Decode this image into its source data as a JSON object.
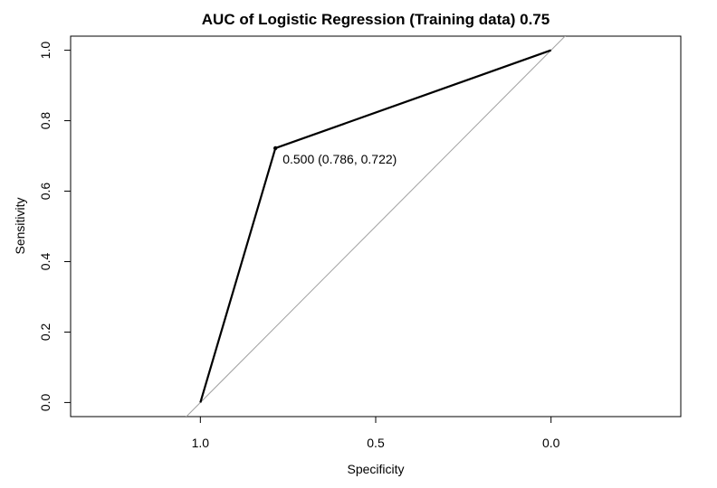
{
  "chart_data": {
    "type": "line",
    "title": "AUC of Logistic Regression (Training data) 0.75",
    "xlabel": "Specificity",
    "ylabel": "Sensitivity",
    "x_reversed": true,
    "xlim": [
      1.37,
      -0.37
    ],
    "ylim": [
      -0.04,
      1.04
    ],
    "x_ticks": [
      {
        "value": 1.0,
        "label": "1.0"
      },
      {
        "value": 0.5,
        "label": "0.5"
      },
      {
        "value": 0.0,
        "label": "0.0"
      }
    ],
    "y_ticks": [
      {
        "value": 0.0,
        "label": "0.0"
      },
      {
        "value": 0.2,
        "label": "0.2"
      },
      {
        "value": 0.4,
        "label": "0.4"
      },
      {
        "value": 0.6,
        "label": "0.6"
      },
      {
        "value": 0.8,
        "label": "0.8"
      },
      {
        "value": 1.0,
        "label": "1.0"
      }
    ],
    "series": [
      {
        "x": [
          1.0,
          0.786,
          0.0
        ],
        "y": [
          0.0,
          0.722,
          1.0
        ],
        "color": "#000000"
      }
    ],
    "reference_line": {
      "x": [
        1.04,
        -0.04
      ],
      "y": [
        -0.04,
        1.04
      ],
      "color": "#a0a0a0"
    },
    "threshold_point": {
      "x": 0.786,
      "y": 0.722,
      "label": "0.500 (0.786, 0.722)"
    },
    "grid": false,
    "legend": "none"
  }
}
